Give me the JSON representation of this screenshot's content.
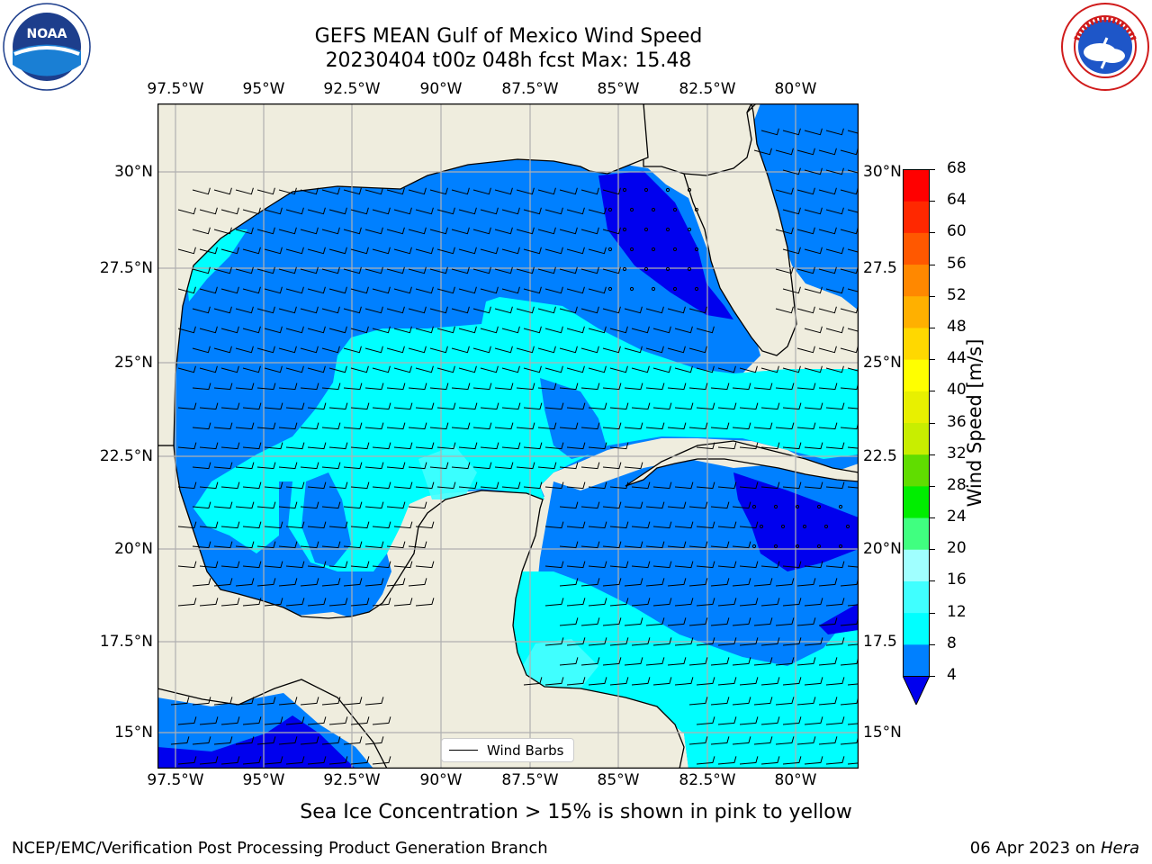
{
  "header": {
    "title_line1": "GEFS MEAN Gulf of Mexico Wind Speed",
    "title_line2": "20230404 t00z 048h fcst   Max: 15.48"
  },
  "map": {
    "lon_labels": [
      "97.5°W",
      "95°W",
      "92.5°W",
      "90°W",
      "87.5°W",
      "85°W",
      "82.5°W",
      "80°W"
    ],
    "lat_labels_left": [
      "30°N",
      "27.5°N",
      "25°N",
      "22.5°N",
      "20°N",
      "17.5°N",
      "15°N"
    ],
    "lat_labels_right": [
      "30°N",
      "27.5",
      "25°N",
      "22.5",
      "20°N",
      "17.5",
      "15°N"
    ],
    "land_color": "#efedde",
    "grid_color": "#b0b0b0",
    "legend_label": "Wind Barbs",
    "regions": [
      "Gulf of Mexico",
      "Florida",
      "Cuba",
      "Yucatan Peninsula",
      "Caribbean Sea"
    ]
  },
  "colorbar": {
    "title": "Wind Speed [m/s]",
    "ticks": [
      "4",
      "8",
      "12",
      "16",
      "20",
      "24",
      "28",
      "32",
      "36",
      "40",
      "44",
      "48",
      "52",
      "56",
      "60",
      "64",
      "68"
    ],
    "colors": [
      "#0000ee",
      "#0080ff",
      "#00ffff",
      "#40ffff",
      "#a0ffff",
      "#40ff80",
      "#00ee00",
      "#60dd00",
      "#c8ee00",
      "#e8f000",
      "#ffff00",
      "#ffd800",
      "#ffb000",
      "#ff8800",
      "#ff5800",
      "#ff2800",
      "#ff0000"
    ]
  },
  "note": "Sea Ice Concentration > 15% is shown in pink to yellow",
  "footer": {
    "left": "NCEP/EMC/Verification Post Processing Product Generation Branch",
    "right_prefix": "06 Apr 2023 on",
    "right_host": "Hera"
  },
  "logos": {
    "noaa_text": "NOAA",
    "noaa_ring_text": "NATIONAL OCEANIC AND ATMOSPHERIC ADMINISTRATION · U.S. DEPARTMENT OF COMMERCE",
    "nws_ring_text": "NATIONAL WEATHER SERVICE"
  }
}
